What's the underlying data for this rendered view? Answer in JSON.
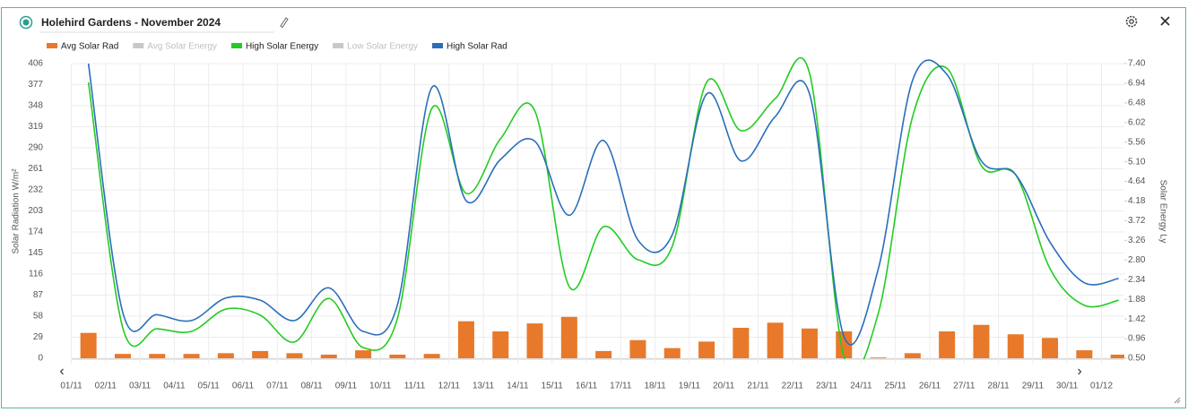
{
  "chart_data": {
    "type": "combo",
    "title": "Holehird Gardens - November 2024",
    "y_label": "Solar Radiation W/m²",
    "y2_label": "Solar Energy Ly",
    "categories": [
      "01/11",
      "02/11",
      "03/11",
      "04/11",
      "05/11",
      "06/11",
      "07/11",
      "08/11",
      "09/11",
      "10/11",
      "11/11",
      "12/11",
      "13/11",
      "14/11",
      "15/11",
      "16/11",
      "17/11",
      "18/11",
      "19/11",
      "20/11",
      "21/11",
      "22/11",
      "23/11",
      "24/11",
      "25/11",
      "26/11",
      "27/11",
      "28/11",
      "29/11",
      "30/11",
      "01/12"
    ],
    "series": [
      {
        "name": "Avg Solar Rad",
        "type": "bar",
        "color": "#e8792a",
        "values": [
          35,
          6,
          6,
          6,
          7,
          10,
          7,
          5,
          11,
          5,
          6,
          51,
          37,
          48,
          57,
          10,
          25,
          14,
          23,
          42,
          49,
          41,
          37,
          1,
          7,
          37,
          46,
          33,
          28,
          11,
          5
        ]
      },
      {
        "name": "Avg Solar Energy",
        "type": "line",
        "color": "#c8c8c8",
        "hidden": true
      },
      {
        "name": "High Solar Energy",
        "type": "line",
        "color": "#22cc22",
        "axis": "y2",
        "values": [
          6.96,
          1.21,
          1.19,
          1.13,
          1.65,
          1.51,
          0.88,
          1.9,
          0.75,
          1.44,
          6.35,
          4.36,
          5.64,
          6.29,
          2.18,
          3.58,
          2.81,
          3.12,
          6.96,
          5.83,
          6.58,
          7.17,
          0.54,
          1.55,
          6.16,
          7.29,
          5.01,
          4.8,
          2.6,
          1.74,
          1.86
        ]
      },
      {
        "name": "Low Solar Energy",
        "type": "line",
        "color": "#c8c8c8",
        "hidden": true
      },
      {
        "name": "High Solar Rad",
        "type": "line",
        "color": "#2a6ebb",
        "values": [
          406,
          63,
          60,
          52,
          83,
          80,
          52,
          97,
          37,
          74,
          373,
          217,
          274,
          299,
          197,
          300,
          163,
          170,
          364,
          272,
          333,
          364,
          30,
          123,
          383,
          391,
          272,
          253,
          160,
          104,
          110
        ]
      }
    ],
    "ylim": [
      0,
      406
    ],
    "yticks": [
      0,
      29,
      58,
      87,
      116,
      145,
      174,
      203,
      232,
      261,
      290,
      319,
      348,
      377,
      406
    ],
    "y2lim": [
      0.5,
      7.4
    ],
    "y2ticks": [
      {
        "value": 0.5,
        "label": "0.50"
      },
      0.96,
      1.42,
      1.88,
      2.34,
      {
        "value": 2.8,
        "label": "2.80"
      },
      3.26,
      3.72,
      4.18,
      4.64,
      {
        "value": 5.1,
        "label": "5.10"
      },
      5.56,
      6.02,
      6.48,
      6.94,
      {
        "value": 7.4,
        "label": "7.40"
      }
    ],
    "grid": true
  }
}
